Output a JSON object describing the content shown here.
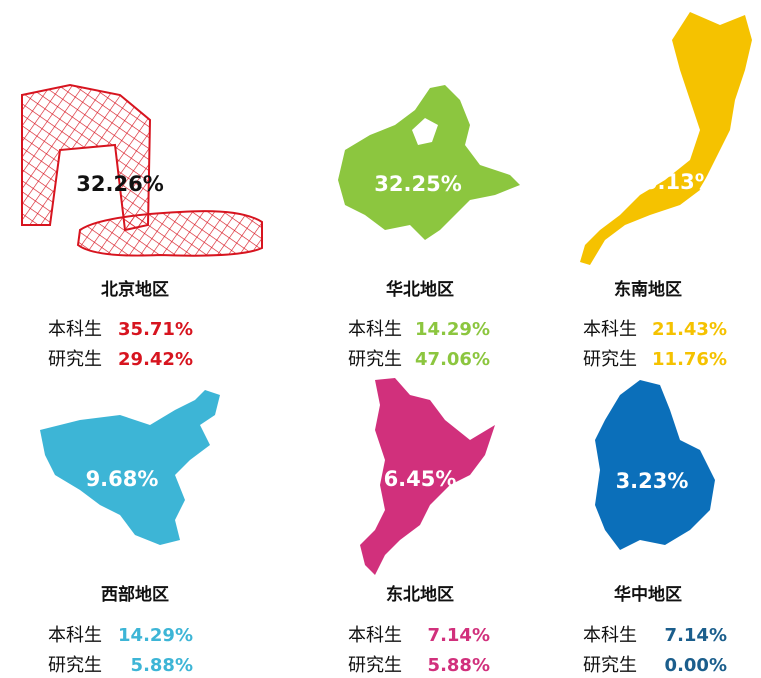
{
  "regions": [
    {
      "share": "32.26%",
      "name": "北京地区",
      "undergrad_label": "本科生",
      "undergrad": "35.71%",
      "grad_label": "研究生",
      "grad": "29.42%"
    },
    {
      "share": "32.25%",
      "name": "华北地区",
      "undergrad_label": "本科生",
      "undergrad": "14.29%",
      "grad_label": "研究生",
      "grad": "47.06%"
    },
    {
      "share": "16.13%",
      "name": "东南地区",
      "undergrad_label": "本科生",
      "undergrad": "21.43%",
      "grad_label": "研究生",
      "grad": "11.76%"
    },
    {
      "share": "9.68%",
      "name": "西部地区",
      "undergrad_label": "本科生",
      "undergrad": "14.29%",
      "grad_label": "研究生",
      "grad": "5.88%"
    },
    {
      "share": "6.45%",
      "name": "东北地区",
      "undergrad_label": "本科生",
      "undergrad": "7.14%",
      "grad_label": "研究生",
      "grad": "5.88%"
    },
    {
      "share": "3.23%",
      "name": "华中地区",
      "undergrad_label": "本科生",
      "undergrad": "7.14%",
      "grad_label": "研究生",
      "grad": "0.00%"
    }
  ]
}
